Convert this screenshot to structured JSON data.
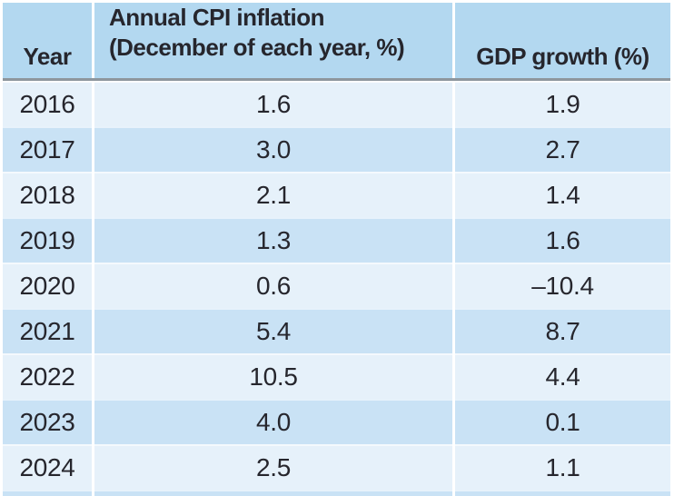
{
  "chart_data": {
    "type": "table",
    "columns": [
      "Year",
      "Annual CPI inflation (December of each year, %)",
      "GDP growth (%)"
    ],
    "rows": [
      {
        "year": "2016",
        "cpi": "1.6",
        "gdp": "1.9"
      },
      {
        "year": "2017",
        "cpi": "3.0",
        "gdp": "2.7"
      },
      {
        "year": "2018",
        "cpi": "2.1",
        "gdp": "1.4"
      },
      {
        "year": "2019",
        "cpi": "1.3",
        "gdp": "1.6"
      },
      {
        "year": "2020",
        "cpi": "0.6",
        "gdp": "–10.4"
      },
      {
        "year": "2021",
        "cpi": "5.4",
        "gdp": "8.7"
      },
      {
        "year": "2022",
        "cpi": "10.5",
        "gdp": "4.4"
      },
      {
        "year": "2023",
        "cpi": "4.0",
        "gdp": "0.1"
      },
      {
        "year": "2024",
        "cpi": "2.5",
        "gdp": "1.1"
      }
    ]
  },
  "header": {
    "year": "Year",
    "cpi_line1": "Annual CPI inflation",
    "cpi_line2": "(December of each year, %)",
    "gdp": "GDP growth (%)"
  },
  "colors": {
    "header_bg": "#b3d8f0",
    "row_light": "#e6f1fa",
    "row_dark": "#c9e2f5",
    "divider": "#8e969d",
    "text": "#26262d",
    "separator": "#ffffff"
  }
}
